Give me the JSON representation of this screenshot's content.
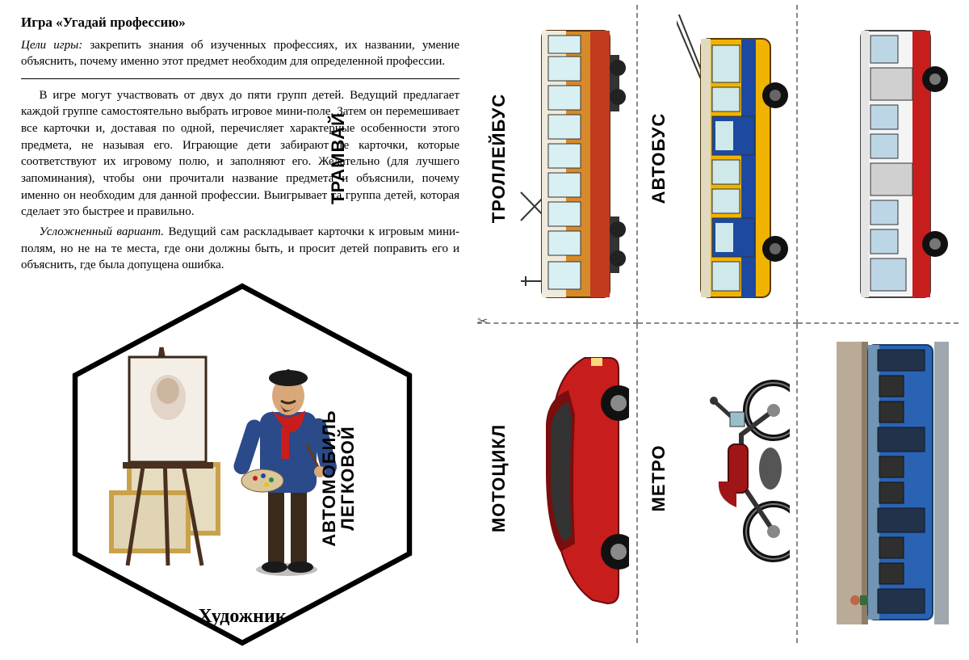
{
  "left": {
    "title": "Игра «Угадай профессию»",
    "goals_label": "Цели игры:",
    "goals_text": " закрепить знания об изученных профессиях, их названии, умение объяснить, почему именно этот предмет необходим для определенной профессии.",
    "para1": "В игре могут участвовать от двух до пяти групп детей. Ведущий предлагает каждой группе самостоятельно выбрать игровое мини-поле. Затем он перемешивает все карточки и, доставая по одной, перечисляет характерные особенности этого предмета, не называя его. Играющие дети забирают те карточки, которые соответствуют их игровому полю, и заполняют его. Желательно (для лучшего запоминания), чтобы они прочитали название предмета и объяснили, почему именно он необходим для данной профессии. Выигрывает та группа детей, которая сделает это быстрее и правильно.",
    "variant_label": "Усложненный вариант.",
    "para2": " Ведущий сам раскладывает карточки к игровым мини-полям, но не на те места, где они должны быть, и просит детей поправить его и объяснить, где была допущена ошибка.",
    "hex_label": "Художник"
  },
  "cards": [
    {
      "label": "ТРАМВАЙ",
      "type": "tram",
      "body": "#d68a2a",
      "accent": "#c23a1e",
      "window": "#d9f0f2"
    },
    {
      "label": "ТРОЛЛЕЙБУС",
      "type": "trolleybus",
      "body": "#f0b300",
      "accent": "#1d4aa0",
      "window": "#cfe8ea"
    },
    {
      "label": "АВТОБУС",
      "type": "bus",
      "body": "#f4f4f4",
      "accent": "#c81d1d",
      "window": "#bcd6e6"
    },
    {
      "label": "АВТОМОБИЛЬ ЛЕГКОВОЙ",
      "type": "car",
      "body": "#c81d1d",
      "accent": "#7a0d0d",
      "window": "#333333"
    },
    {
      "label": "МОТОЦИКЛ",
      "type": "motorcycle",
      "body": "#a01616",
      "accent": "#111111",
      "window": "#9abfc8"
    },
    {
      "label": "МЕТРО",
      "type": "metro",
      "body": "#2a63b3",
      "accent": "#7295b3",
      "window": "#2f2f2f"
    }
  ],
  "style": {
    "bg": "#ffffff",
    "text": "#000000",
    "dash": "#888888",
    "title_fontsize": 17,
    "body_fontsize": 15,
    "card_label_fontsize": 22,
    "hex_label_fontsize": 24
  },
  "artist": {
    "beret": "#1a1a1a",
    "scarf": "#c81d1d",
    "sweater": "#2a4a8a",
    "pants": "#3a2a1a",
    "skin": "#d9a87a",
    "easel": "#4a3020",
    "canvas": "#f4efe6",
    "frame": "#c9a24a"
  }
}
